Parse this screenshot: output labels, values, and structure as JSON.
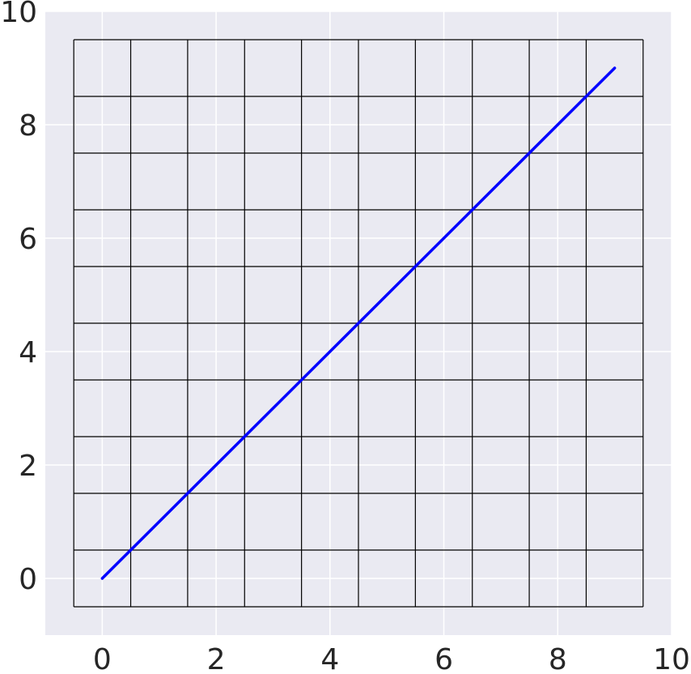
{
  "chart_data": {
    "type": "line",
    "title": "",
    "xlabel": "",
    "ylabel": "",
    "xlim": [
      -1,
      10
    ],
    "ylim": [
      -1,
      10
    ],
    "x_ticks": [
      "0",
      "2",
      "4",
      "6",
      "8",
      "10"
    ],
    "y_ticks": [
      "0",
      "2",
      "4",
      "6",
      "8",
      "10"
    ],
    "grid": true,
    "background_color": "#eaeaf2",
    "gridline_color": "#ffffff",
    "cell_grid": {
      "edges": [
        -0.5,
        0.5,
        1.5,
        2.5,
        3.5,
        4.5,
        5.5,
        6.5,
        7.5,
        8.5,
        9.5
      ],
      "color": "#000000"
    },
    "series": [
      {
        "color": "#0000ff",
        "x": [
          0,
          1,
          2,
          3,
          4,
          5,
          6,
          7,
          8,
          9
        ],
        "y": [
          0,
          1,
          2,
          3,
          4,
          5,
          6,
          7,
          8,
          9
        ]
      }
    ]
  }
}
